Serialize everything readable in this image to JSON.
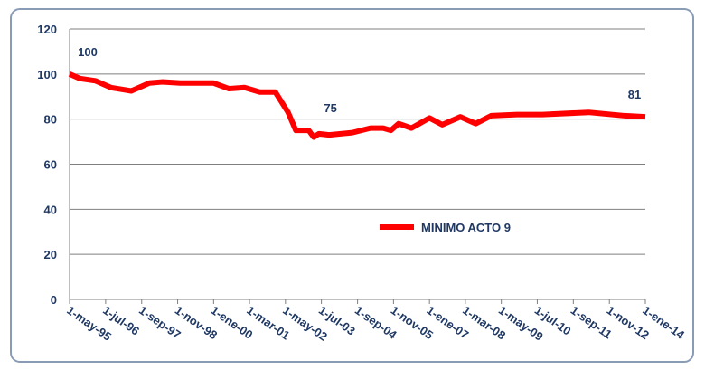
{
  "chart_data": {
    "type": "line",
    "x": [
      "1995-05-01",
      "1995-09-01",
      "1996-03-01",
      "1996-09-01",
      "1997-05-01",
      "1997-12-01",
      "1998-05-01",
      "1998-12-01",
      "2000-01-01",
      "2000-07-01",
      "2001-01-01",
      "2001-07-01",
      "2002-01-01",
      "2002-06-01",
      "2002-09-01",
      "2003-02-01",
      "2003-04-01",
      "2003-06-01",
      "2003-10-01",
      "2004-07-01",
      "2005-02-01",
      "2005-07-01",
      "2005-10-01",
      "2006-01-01",
      "2006-06-01",
      "2007-01-01",
      "2007-06-01",
      "2008-01-01",
      "2008-07-01",
      "2009-01-01",
      "2009-11-01",
      "2010-09-01",
      "2012-03-01",
      "2013-05-01",
      "2014-01-01"
    ],
    "series": [
      {
        "name": "MINIMO ACTO 9",
        "color": "#ff0000",
        "values": [
          100,
          98,
          97,
          94,
          92.5,
          96,
          96.5,
          96,
          96,
          93.5,
          94,
          92,
          92,
          83,
          75,
          75,
          72,
          73.5,
          73,
          74,
          76,
          76,
          75,
          78,
          76,
          80.5,
          77.5,
          81,
          78,
          81.5,
          82,
          82,
          83,
          81.5,
          81
        ],
        "value_labels": [
          "100",
          null,
          null,
          null,
          null,
          null,
          null,
          null,
          null,
          null,
          null,
          null,
          null,
          null,
          null,
          "75",
          null,
          null,
          null,
          null,
          null,
          null,
          null,
          null,
          null,
          null,
          null,
          null,
          null,
          null,
          null,
          null,
          null,
          null,
          "81"
        ]
      }
    ],
    "xlim": [
      "1995-05-01",
      "2014-01-01"
    ],
    "xticks": [
      {
        "value": "1995-05-01",
        "label": "1-may-95"
      },
      {
        "value": "1996-07-01",
        "label": "1-jul-96"
      },
      {
        "value": "1997-09-01",
        "label": "1-sep-97"
      },
      {
        "value": "1998-11-01",
        "label": "1-nov-98"
      },
      {
        "value": "2000-01-01",
        "label": "1-ene-00"
      },
      {
        "value": "2001-03-01",
        "label": "1-mar-01"
      },
      {
        "value": "2002-05-01",
        "label": "1-may-02"
      },
      {
        "value": "2003-07-01",
        "label": "1-jul-03"
      },
      {
        "value": "2004-09-01",
        "label": "1-sep-04"
      },
      {
        "value": "2005-11-01",
        "label": "1-nov-05"
      },
      {
        "value": "2007-01-01",
        "label": "1-ene-07"
      },
      {
        "value": "2008-03-01",
        "label": "1-mar-08"
      },
      {
        "value": "2009-05-01",
        "label": "1-may-09"
      },
      {
        "value": "2010-07-01",
        "label": "1-jul-10"
      },
      {
        "value": "2011-09-01",
        "label": "1-sep-11"
      },
      {
        "value": "2012-11-01",
        "label": "1-nov-12"
      },
      {
        "value": "2014-01-01",
        "label": "1-ene-14"
      }
    ],
    "ylim": [
      0,
      120
    ],
    "yticks": [
      0,
      20,
      40,
      60,
      80,
      100,
      120
    ],
    "grid": true,
    "legend": "center"
  }
}
